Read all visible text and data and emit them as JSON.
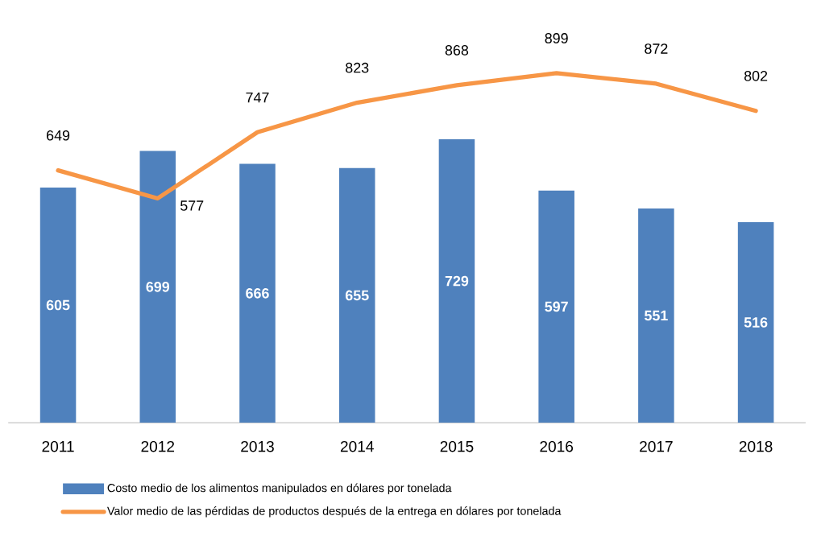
{
  "chart_data": {
    "type": "bar",
    "categories": [
      "2011",
      "2012",
      "2013",
      "2014",
      "2015",
      "2016",
      "2017",
      "2018"
    ],
    "series": [
      {
        "name": "Costo medio de los alimentos manipulados en dólares por tonelada",
        "color": "#4f81bd",
        "values": [
          605,
          699,
          666,
          655,
          729,
          597,
          551,
          516
        ]
      },
      {
        "name": "Valor medio de las pérdidas de productos después de la entrega en dólares por tonelada",
        "type": "line",
        "color": "#f79646",
        "values": [
          649,
          577,
          747,
          823,
          868,
          899,
          872,
          802
        ]
      }
    ],
    "data_labels": true,
    "legend": "bottom",
    "grid": false
  }
}
